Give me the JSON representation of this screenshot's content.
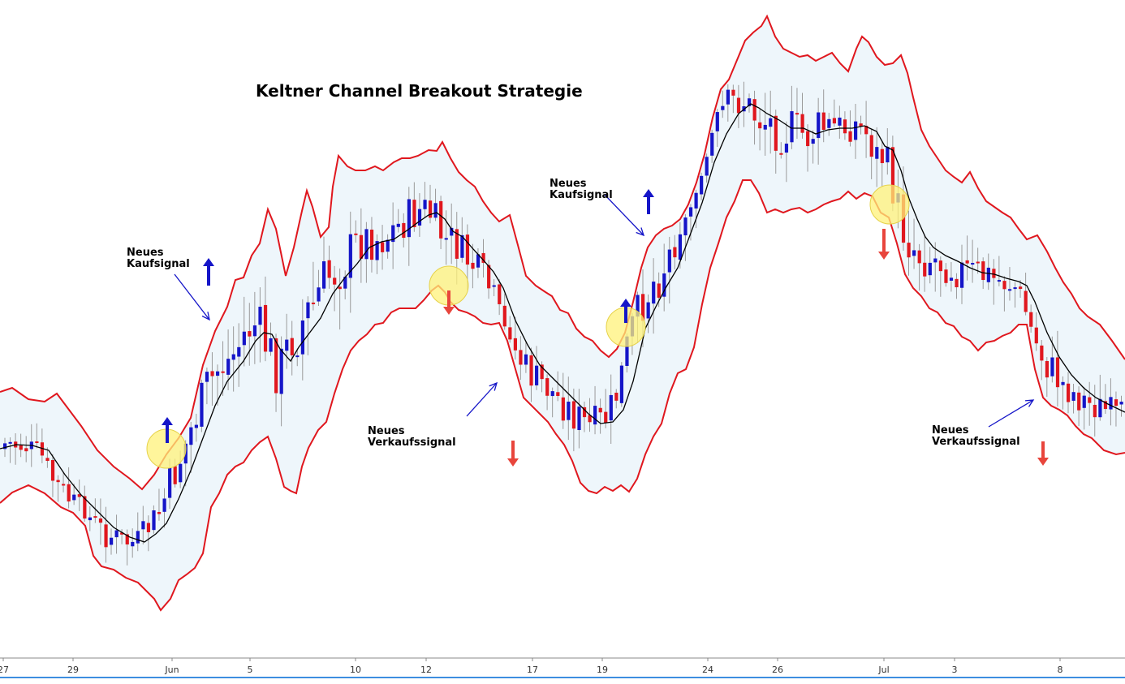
{
  "chart_data": {
    "type": "candlestick",
    "title": "Keltner Channel Breakout Strategie",
    "x_tick_labels": [
      "27",
      "29",
      "Jun",
      "5",
      "10",
      "12",
      "17",
      "19",
      "24",
      "26",
      "Jul",
      "3",
      "8"
    ],
    "series": [
      {
        "name": "",
        "role": "upper-band",
        "color": "#e0171e"
      },
      {
        "name": "",
        "role": "middle-line",
        "color": "#000000"
      },
      {
        "name": "",
        "role": "lower-band",
        "color": "#e0171e"
      },
      {
        "name": "",
        "role": "candles",
        "up_color": "#1515c8",
        "down_color": "#e0171e"
      }
    ],
    "band_fill": "#eef6fb",
    "annotations": [
      {
        "id": "buy-1",
        "lines": [
          "Neues",
          "Kaufsignal"
        ],
        "signal": "buy"
      },
      {
        "id": "sell-1",
        "lines": [
          "Neues",
          "Verkaufssignal"
        ],
        "signal": "sell"
      },
      {
        "id": "buy-2",
        "lines": [
          "Neues",
          "Kaufsignal"
        ],
        "signal": "buy"
      },
      {
        "id": "sell-2",
        "lines": [
          "Neues",
          "Verkaufssignal"
        ],
        "signal": "sell"
      }
    ],
    "signal_colors": {
      "buy": "#1515c8",
      "sell": "#e8453c",
      "highlight": "#fff27a"
    },
    "grid": false,
    "legend": "none"
  }
}
